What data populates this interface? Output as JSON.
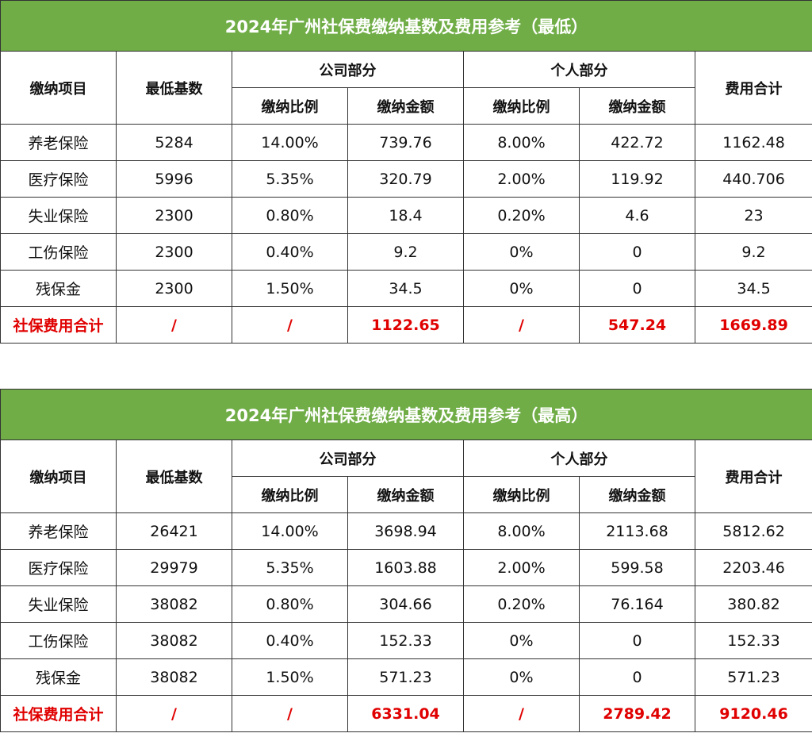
{
  "headers": {
    "item": "缴纳项目",
    "base": "最低基数",
    "company": "公司部分",
    "personal": "个人部分",
    "total": "费用合计",
    "rate": "缴纳比例",
    "amount": "缴纳金额"
  },
  "tables": [
    {
      "title": "2024年广州社保费缴纳基数及费用参考（最低）",
      "rows": [
        {
          "item": "养老保险",
          "base": "5284",
          "company_rate": "14.00%",
          "company_amount": "739.76",
          "personal_rate": "8.00%",
          "personal_amount": "422.72",
          "total": "1162.48"
        },
        {
          "item": "医疗保险",
          "base": "5996",
          "company_rate": "5.35%",
          "company_amount": "320.79",
          "personal_rate": "2.00%",
          "personal_amount": "119.92",
          "total": "440.706"
        },
        {
          "item": "失业保险",
          "base": "2300",
          "company_rate": "0.80%",
          "company_amount": "18.4",
          "personal_rate": "0.20%",
          "personal_amount": "4.6",
          "total": "23"
        },
        {
          "item": "工伤保险",
          "base": "2300",
          "company_rate": "0.40%",
          "company_amount": "9.2",
          "personal_rate": "0%",
          "personal_amount": "0",
          "total": "9.2"
        },
        {
          "item": "残保金",
          "base": "2300",
          "company_rate": "1.50%",
          "company_amount": "34.5",
          "personal_rate": "0%",
          "personal_amount": "0",
          "total": "34.5"
        }
      ],
      "totals": {
        "item": "社保费用合计",
        "base": "/",
        "company_rate": "/",
        "company_amount": "1122.65",
        "personal_rate": "/",
        "personal_amount": "547.24",
        "total": "1669.89"
      }
    },
    {
      "title": "2024年广州社保费缴纳基数及费用参考（最高）",
      "rows": [
        {
          "item": "养老保险",
          "base": "26421",
          "company_rate": "14.00%",
          "company_amount": "3698.94",
          "personal_rate": "8.00%",
          "personal_amount": "2113.68",
          "total": "5812.62"
        },
        {
          "item": "医疗保险",
          "base": "29979",
          "company_rate": "5.35%",
          "company_amount": "1603.88",
          "personal_rate": "2.00%",
          "personal_amount": "599.58",
          "total": "2203.46"
        },
        {
          "item": "失业保险",
          "base": "38082",
          "company_rate": "0.80%",
          "company_amount": "304.66",
          "personal_rate": "0.20%",
          "personal_amount": "76.164",
          "total": "380.82"
        },
        {
          "item": "工伤保险",
          "base": "38082",
          "company_rate": "0.40%",
          "company_amount": "152.33",
          "personal_rate": "0%",
          "personal_amount": "0",
          "total": "152.33"
        },
        {
          "item": "残保金",
          "base": "38082",
          "company_rate": "1.50%",
          "company_amount": "571.23",
          "personal_rate": "0%",
          "personal_amount": "0",
          "total": "571.23"
        }
      ],
      "totals": {
        "item": "社保费用合计",
        "base": "/",
        "company_rate": "/",
        "company_amount": "6331.04",
        "personal_rate": "/",
        "personal_amount": "2789.42",
        "total": "9120.46"
      }
    }
  ],
  "colors": {
    "header_green": "#70ad47",
    "total_red": "#e00000"
  }
}
